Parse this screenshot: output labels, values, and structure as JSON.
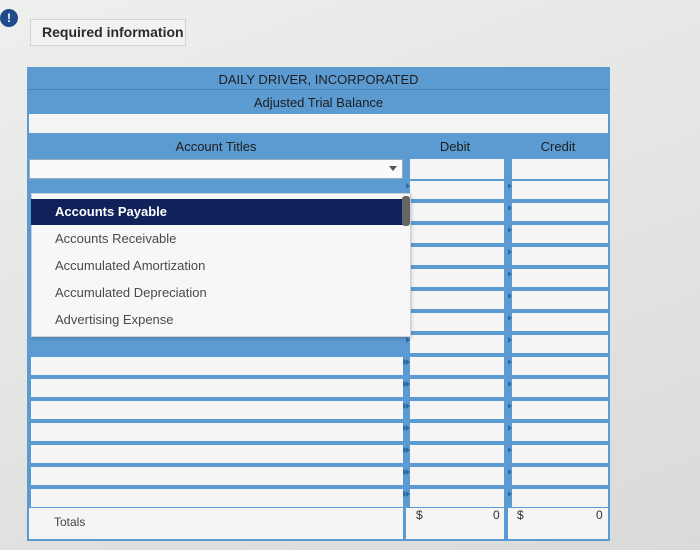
{
  "alert_icon": "exclamation-icon",
  "required_label": "Required information",
  "sheet": {
    "company": "DAILY DRIVER, INCORPORATED",
    "statement": "Adjusted Trial Balance",
    "columns": {
      "account": "Account Titles",
      "debit": "Debit",
      "credit": "Credit"
    },
    "dropdown_options": [
      "Accounts Payable",
      "Accounts Receivable",
      "Accumulated Amortization",
      "Accumulated Depreciation",
      "Advertising Expense"
    ],
    "selected_option": "Accounts Payable",
    "totals": {
      "label": "Totals",
      "debit_symbol": "$",
      "debit_value": "0",
      "credit_symbol": "$",
      "credit_value": "0"
    }
  },
  "colors": {
    "header_blue": "#5b9bd1",
    "selected_bg": "#11215a"
  }
}
